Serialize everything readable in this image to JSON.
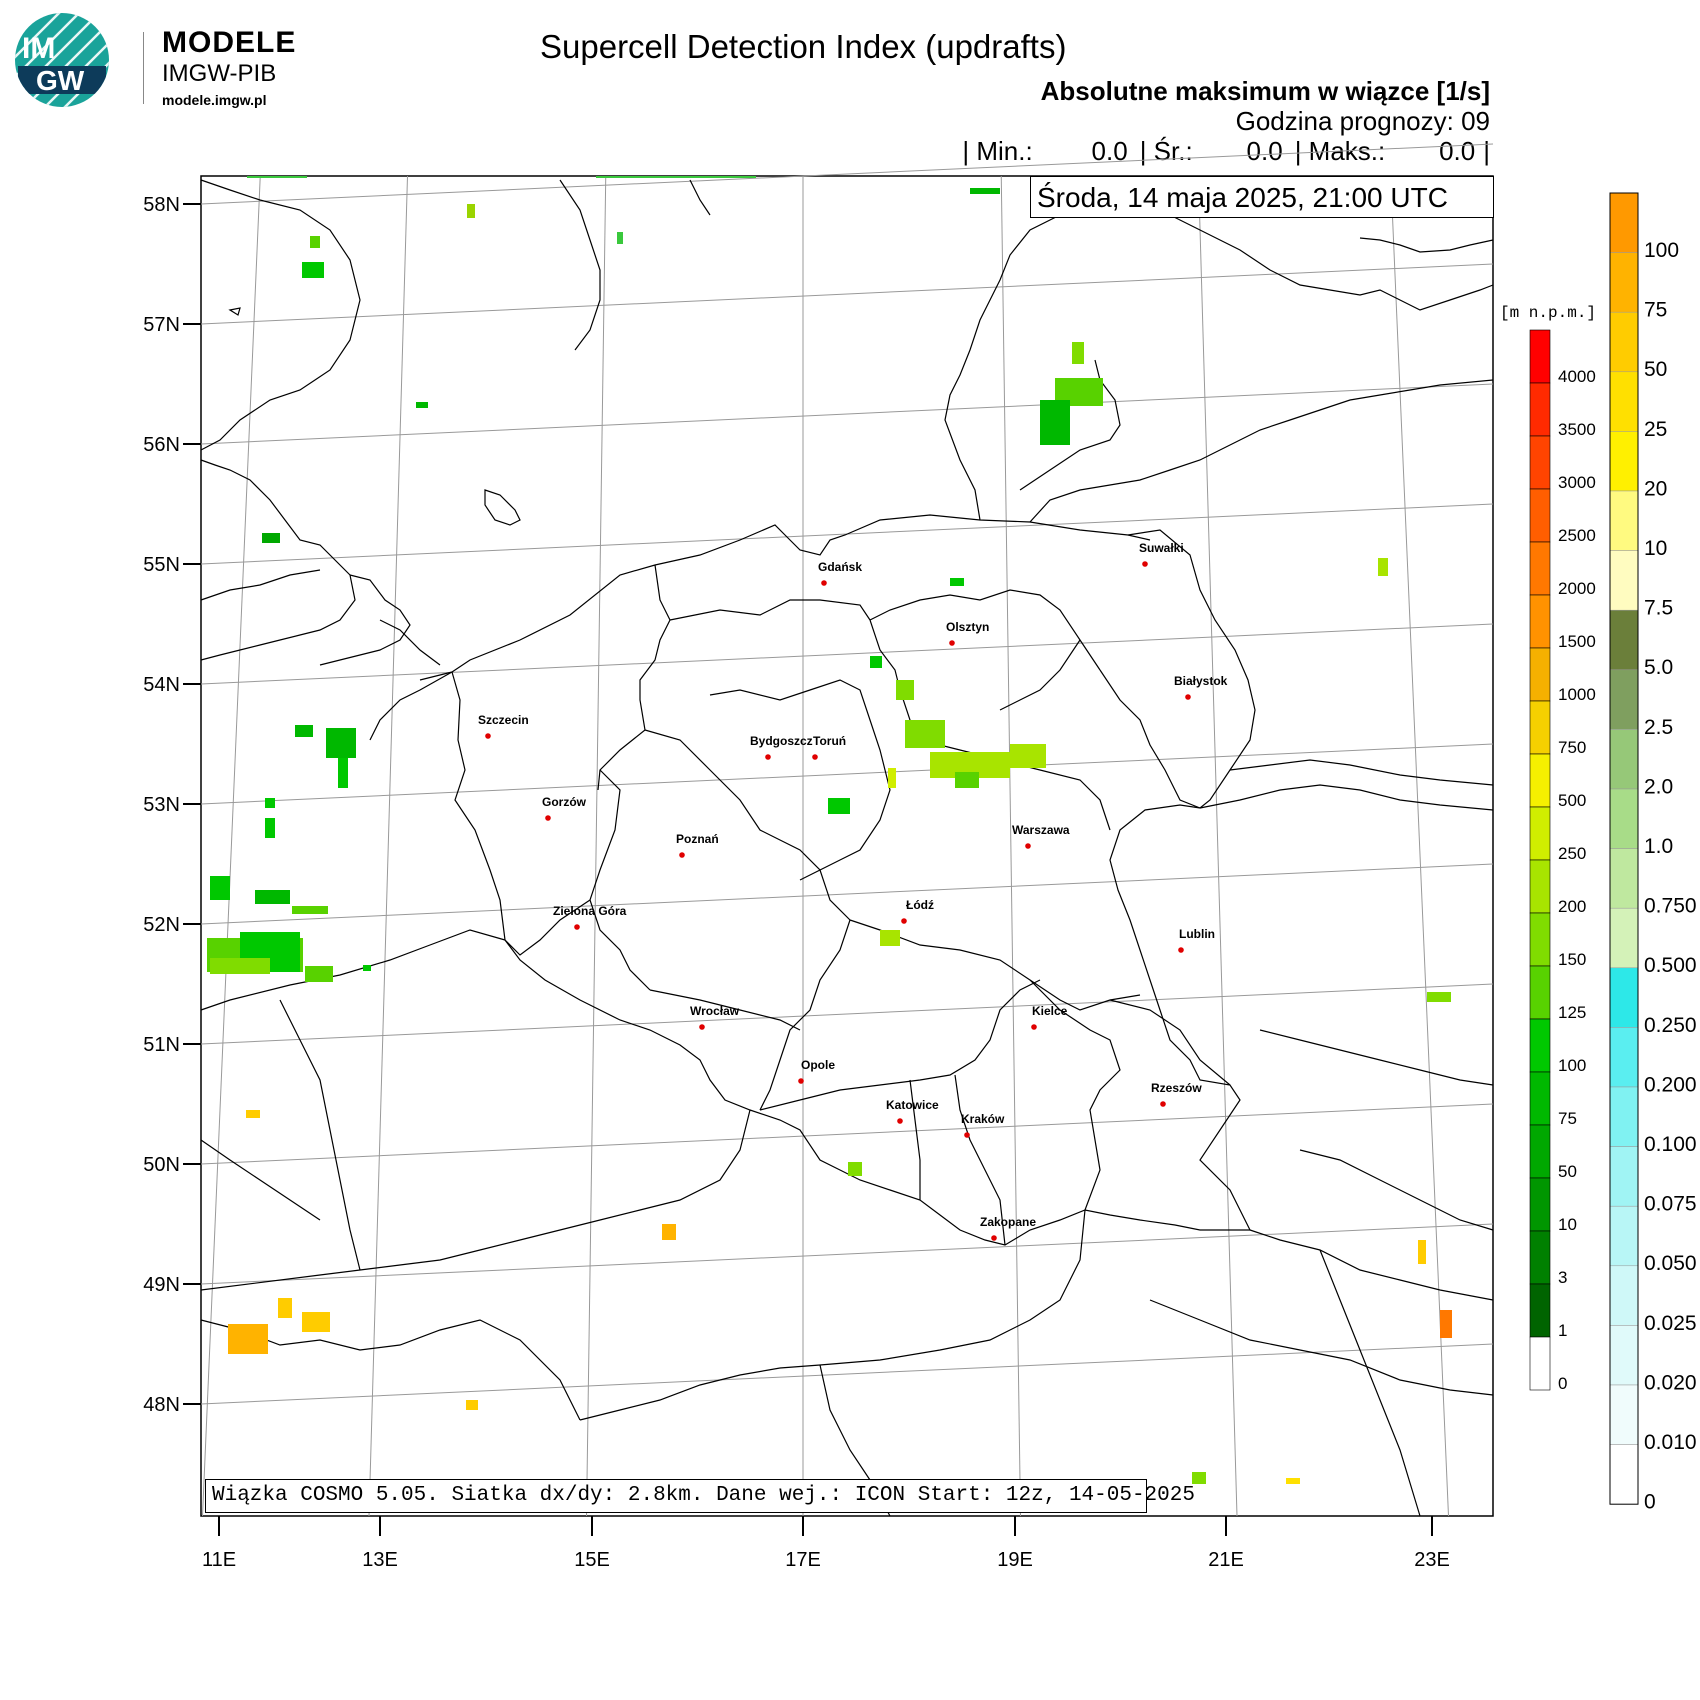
{
  "brand": {
    "logo_text_top": "IM",
    "logo_text_bottom": "GW",
    "name": "MODELE",
    "org": "IMGW-PIB",
    "url": "modele.imgw.pl"
  },
  "header": {
    "title": "Supercell Detection Index (updrafts)",
    "subtitle": "Absolutne maksimum w wiązce [1/s]",
    "forecast_hour": "Godzina prognozy: 09",
    "stats": {
      "min_label": "| Min.:",
      "min_value": "0.0",
      "mean_label": "| Śr.:",
      "mean_value": "0.0",
      "max_label": "| Maks.:",
      "max_value": "0.0",
      "end": "|"
    },
    "valid_time": "Środa, 14 maja 2025, 21:00 UTC"
  },
  "footer": "Wiązka COSMO 5.05. Siatka dx/dy: 2.8km. Dane wej.: ICON Start: 12z, 14-05-2025",
  "axes": {
    "lat_labels": [
      "58N",
      "57N",
      "56N",
      "55N",
      "54N",
      "53N",
      "52N",
      "51N",
      "50N",
      "49N",
      "48N"
    ],
    "lon_labels": [
      "11E",
      "13E",
      "15E",
      "17E",
      "19E",
      "21E",
      "23E"
    ]
  },
  "cities": [
    {
      "name": "Gdańsk"
    },
    {
      "name": "Suwałki"
    },
    {
      "name": "Olsztyn"
    },
    {
      "name": "Białystok"
    },
    {
      "name": "Szczecin"
    },
    {
      "name": "Bydgoszcz"
    },
    {
      "name": "Toruń"
    },
    {
      "name": "Gorzów"
    },
    {
      "name": "Poznań"
    },
    {
      "name": "Warszawa"
    },
    {
      "name": "Zielona Góra"
    },
    {
      "name": "Łódź"
    },
    {
      "name": "Lublin"
    },
    {
      "name": "Wrocław"
    },
    {
      "name": "Kielce"
    },
    {
      "name": "Opole"
    },
    {
      "name": "Rzeszów"
    },
    {
      "name": "Katowice"
    },
    {
      "name": "Kraków"
    },
    {
      "name": "Zakopane"
    }
  ],
  "elevation_colorbar": {
    "unit": "[m n.p.m.]",
    "labels": [
      "4000",
      "3500",
      "3000",
      "2500",
      "2000",
      "1500",
      "1000",
      "750",
      "500",
      "250",
      "200",
      "150",
      "125",
      "100",
      "75",
      "50",
      "10",
      "3",
      "1",
      "0"
    ],
    "colors": [
      "#ff0000",
      "#ff2a00",
      "#ff4400",
      "#ff5e00",
      "#ff7800",
      "#ff9200",
      "#f5b000",
      "#f5d000",
      "#f5f000",
      "#d0ee00",
      "#a8e400",
      "#80dc00",
      "#58d200",
      "#00c800",
      "#00b800",
      "#00a800",
      "#009600",
      "#008000",
      "#006400",
      "#ffffff"
    ]
  },
  "sdi_colorbar": {
    "labels": [
      "100",
      "75",
      "50",
      "25",
      "20",
      "10",
      "7.5",
      "5.0",
      "2.5",
      "2.0",
      "1.0",
      "0.750",
      "0.500",
      "0.250",
      "0.200",
      "0.100",
      "0.075",
      "0.050",
      "0.025",
      "0.020",
      "0.010",
      "0"
    ],
    "colors": [
      "#ff9900",
      "#ffb300",
      "#ffcc00",
      "#ffe000",
      "#fff000",
      "#fffa80",
      "#fffcc0",
      "#6b7f3a",
      "#7f9f5f",
      "#96c878",
      "#a8dc88",
      "#bfe89f",
      "#d4f2b8",
      "#2de8e8",
      "#5aeef0",
      "#80f2f2",
      "#a0f4f4",
      "#b8f6f6",
      "#cff8f8",
      "#e0fafa",
      "#f0fcfc",
      "#ffffff"
    ]
  }
}
